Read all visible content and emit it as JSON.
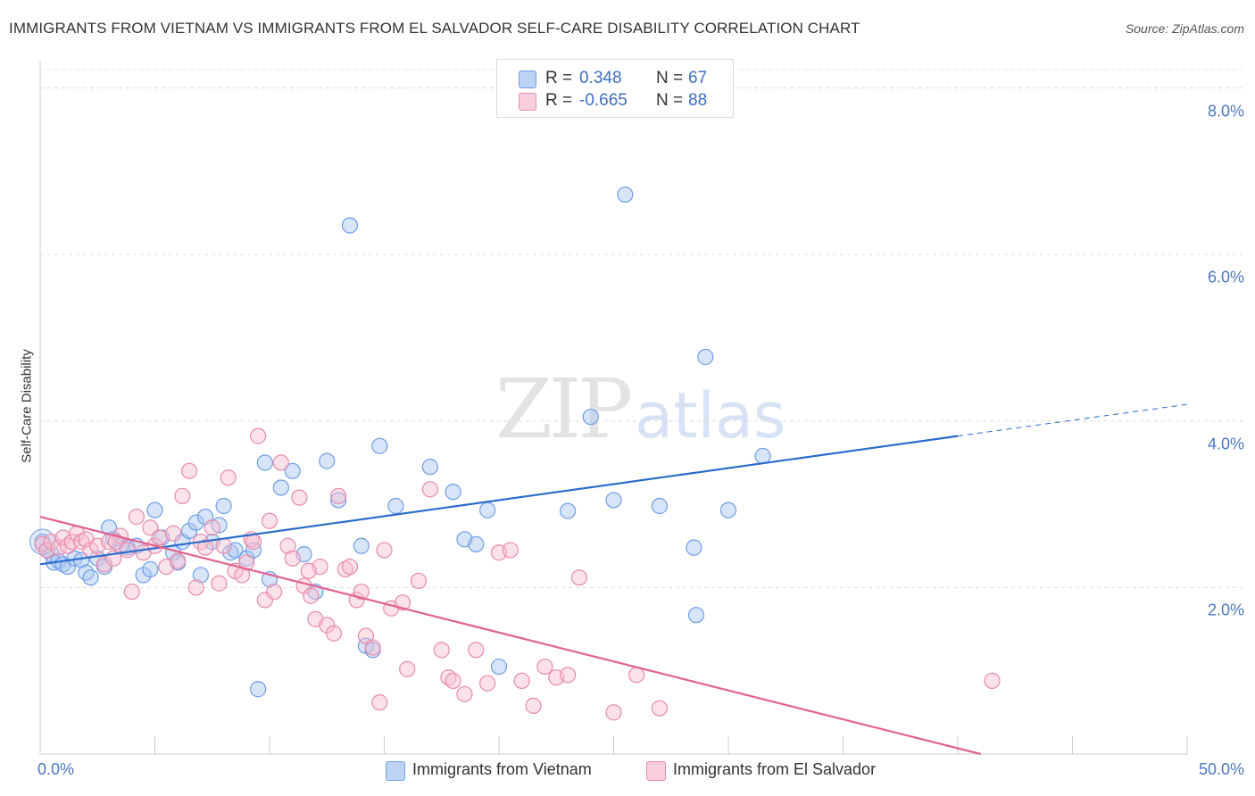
{
  "title": "IMMIGRANTS FROM VIETNAM VS IMMIGRANTS FROM EL SALVADOR SELF-CARE DISABILITY CORRELATION CHART",
  "source": "Source: ZipAtlas.com",
  "watermark": {
    "zip": "ZIP",
    "atlas": "atlas"
  },
  "colors": {
    "vietnam": "#6f9ee8",
    "vietnam_fill": "#a9c6f2",
    "el_salvador": "#e98aa9",
    "el_salvador_fill": "#f6bfd0",
    "vietnam_line": "#2a6ccd",
    "el_salvador_line": "#e2638f",
    "tick_label": "#4a78c6"
  },
  "legend_top": {
    "rows": [
      {
        "r_label": "R =",
        "r_value": "0.348",
        "n_label": "N =",
        "n_value": "67"
      },
      {
        "r_label": "R =",
        "r_value": "-0.665",
        "n_label": "N =",
        "n_value": "88"
      }
    ]
  },
  "legend_bottom": {
    "items": [
      {
        "label": "Immigrants from Vietnam"
      },
      {
        "label": "Immigrants from El Salvador"
      }
    ]
  },
  "chart_data": {
    "type": "scatter",
    "title": "IMMIGRANTS FROM VIETNAM VS IMMIGRANTS FROM EL SALVADOR SELF-CARE DISABILITY CORRELATION CHART",
    "xlabel": "",
    "ylabel": "Self-Care Disability",
    "xlim": [
      0,
      50
    ],
    "ylim": [
      0,
      8.2
    ],
    "x_tick_labels": [
      "0.0%",
      "50.0%"
    ],
    "y_ticks": [
      2,
      4,
      6,
      8
    ],
    "y_tick_labels": [
      "2.0%",
      "4.0%",
      "6.0%",
      "8.0%"
    ],
    "grid": "horizontal dashed",
    "legend_placement": "bottom",
    "series": [
      {
        "name": "Immigrants from Vietnam",
        "r": 0.348,
        "n": 67,
        "trend": {
          "x0": 0,
          "y0": 2.28,
          "x1": 40,
          "y1": 3.82,
          "dash_to_x": 50,
          "dash_to_y": 4.2
        },
        "points": [
          [
            0.1,
            2.55
          ],
          [
            0.3,
            2.45
          ],
          [
            0.5,
            2.4
          ],
          [
            0.6,
            2.3
          ],
          [
            0.8,
            2.32
          ],
          [
            1.0,
            2.28
          ],
          [
            1.2,
            2.25
          ],
          [
            1.5,
            2.35
          ],
          [
            1.8,
            2.33
          ],
          [
            2.0,
            2.18
          ],
          [
            2.2,
            2.12
          ],
          [
            2.5,
            2.35
          ],
          [
            2.8,
            2.25
          ],
          [
            3.0,
            2.72
          ],
          [
            3.2,
            2.58
          ],
          [
            3.5,
            2.5
          ],
          [
            3.8,
            2.48
          ],
          [
            4.2,
            2.5
          ],
          [
            4.5,
            2.15
          ],
          [
            4.8,
            2.22
          ],
          [
            5.0,
            2.93
          ],
          [
            5.3,
            2.6
          ],
          [
            5.8,
            2.42
          ],
          [
            6.0,
            2.3
          ],
          [
            6.2,
            2.55
          ],
          [
            6.5,
            2.68
          ],
          [
            6.8,
            2.78
          ],
          [
            7.0,
            2.15
          ],
          [
            7.2,
            2.85
          ],
          [
            7.5,
            2.55
          ],
          [
            7.8,
            2.75
          ],
          [
            8.0,
            2.98
          ],
          [
            8.3,
            2.42
          ],
          [
            8.5,
            2.45
          ],
          [
            9.0,
            2.35
          ],
          [
            9.3,
            2.45
          ],
          [
            9.5,
            0.78
          ],
          [
            9.8,
            3.5
          ],
          [
            10.0,
            2.1
          ],
          [
            10.5,
            3.2
          ],
          [
            11.0,
            3.4
          ],
          [
            11.5,
            2.4
          ],
          [
            12.0,
            1.95
          ],
          [
            12.5,
            3.52
          ],
          [
            13.0,
            3.05
          ],
          [
            13.5,
            6.35
          ],
          [
            14.0,
            2.5
          ],
          [
            14.2,
            1.3
          ],
          [
            14.5,
            1.25
          ],
          [
            14.8,
            3.7
          ],
          [
            15.5,
            2.98
          ],
          [
            17.0,
            3.45
          ],
          [
            18.0,
            3.15
          ],
          [
            18.5,
            2.58
          ],
          [
            19.0,
            2.52
          ],
          [
            19.5,
            2.93
          ],
          [
            20.0,
            1.05
          ],
          [
            23.0,
            2.92
          ],
          [
            24.0,
            4.05
          ],
          [
            25.0,
            3.05
          ],
          [
            25.5,
            6.72
          ],
          [
            27.0,
            2.98
          ],
          [
            28.5,
            2.48
          ],
          [
            28.6,
            1.67
          ],
          [
            29.0,
            4.77
          ],
          [
            30.0,
            2.93
          ],
          [
            31.5,
            3.58
          ]
        ]
      },
      {
        "name": "Immigrants from El Salvador",
        "r": -0.665,
        "n": 88,
        "trend": {
          "x0": 0,
          "y0": 2.85,
          "x1": 41,
          "y1": 0.0
        },
        "points": [
          [
            0.1,
            2.52
          ],
          [
            0.3,
            2.45
          ],
          [
            0.5,
            2.55
          ],
          [
            0.8,
            2.48
          ],
          [
            1.0,
            2.6
          ],
          [
            1.2,
            2.5
          ],
          [
            1.4,
            2.55
          ],
          [
            1.6,
            2.65
          ],
          [
            1.8,
            2.55
          ],
          [
            2.0,
            2.58
          ],
          [
            2.2,
            2.45
          ],
          [
            2.5,
            2.5
          ],
          [
            2.8,
            2.28
          ],
          [
            3.0,
            2.55
          ],
          [
            3.2,
            2.35
          ],
          [
            3.5,
            2.62
          ],
          [
            3.8,
            2.45
          ],
          [
            4.0,
            1.95
          ],
          [
            4.2,
            2.85
          ],
          [
            4.5,
            2.42
          ],
          [
            4.8,
            2.72
          ],
          [
            5.0,
            2.5
          ],
          [
            5.2,
            2.6
          ],
          [
            5.5,
            2.25
          ],
          [
            5.8,
            2.65
          ],
          [
            6.0,
            2.32
          ],
          [
            6.2,
            3.1
          ],
          [
            6.5,
            3.4
          ],
          [
            6.8,
            2.0
          ],
          [
            7.0,
            2.55
          ],
          [
            7.2,
            2.48
          ],
          [
            7.5,
            2.72
          ],
          [
            7.8,
            2.05
          ],
          [
            8.0,
            2.5
          ],
          [
            8.2,
            3.32
          ],
          [
            8.5,
            2.2
          ],
          [
            8.8,
            2.15
          ],
          [
            9.0,
            2.3
          ],
          [
            9.2,
            2.58
          ],
          [
            9.5,
            3.82
          ],
          [
            9.8,
            1.85
          ],
          [
            10.0,
            2.8
          ],
          [
            10.2,
            1.95
          ],
          [
            10.5,
            3.5
          ],
          [
            10.8,
            2.5
          ],
          [
            11.0,
            2.35
          ],
          [
            11.3,
            3.08
          ],
          [
            11.5,
            2.02
          ],
          [
            11.8,
            1.9
          ],
          [
            12.0,
            1.62
          ],
          [
            12.2,
            2.25
          ],
          [
            12.5,
            1.55
          ],
          [
            12.8,
            1.45
          ],
          [
            13.0,
            3.1
          ],
          [
            13.3,
            2.22
          ],
          [
            13.5,
            2.25
          ],
          [
            13.8,
            1.85
          ],
          [
            14.0,
            1.95
          ],
          [
            14.2,
            1.42
          ],
          [
            14.5,
            1.28
          ],
          [
            14.8,
            0.62
          ],
          [
            15.0,
            2.45
          ],
          [
            15.3,
            1.75
          ],
          [
            15.8,
            1.82
          ],
          [
            16.0,
            1.02
          ],
          [
            16.5,
            2.08
          ],
          [
            17.0,
            3.18
          ],
          [
            17.5,
            1.25
          ],
          [
            17.8,
            0.92
          ],
          [
            18.0,
            0.88
          ],
          [
            18.5,
            0.72
          ],
          [
            19.0,
            1.25
          ],
          [
            19.5,
            0.85
          ],
          [
            20.0,
            2.42
          ],
          [
            20.5,
            2.45
          ],
          [
            21.0,
            0.88
          ],
          [
            21.5,
            0.58
          ],
          [
            22.0,
            1.05
          ],
          [
            22.5,
            0.92
          ],
          [
            23.0,
            0.95
          ],
          [
            23.5,
            2.12
          ],
          [
            25.0,
            0.5
          ],
          [
            26.0,
            0.95
          ],
          [
            27.0,
            0.55
          ],
          [
            41.5,
            0.88
          ],
          [
            3.3,
            2.55
          ],
          [
            9.3,
            2.55
          ],
          [
            11.7,
            2.2
          ]
        ]
      }
    ]
  }
}
